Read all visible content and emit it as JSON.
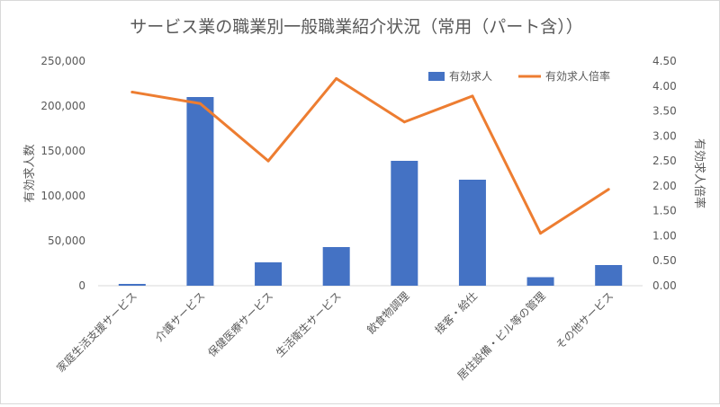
{
  "chart_data": {
    "type": "bar+line",
    "title": "サービス業の職業別一般職業紹介状況（常用（パート含））",
    "categories": [
      "家庭生活支援サービス",
      "介護サービス",
      "保健医療サービス",
      "生活衛生サービス",
      "飲食物調理",
      "接客・給仕",
      "居住設備・ビル等の管理",
      "その他サービス"
    ],
    "series": [
      {
        "name": "有効求人",
        "type": "bar",
        "axis": "left",
        "color": "#4472C4",
        "values": [
          2000,
          210000,
          26000,
          43000,
          139000,
          118000,
          9500,
          23000
        ]
      },
      {
        "name": "有効求人倍率",
        "type": "line",
        "axis": "right",
        "color": "#ED7D31",
        "values": [
          3.88,
          3.65,
          2.5,
          4.15,
          3.28,
          3.8,
          1.05,
          1.93
        ]
      }
    ],
    "ylabel": "有効求人数",
    "y2label": "有効求人倍率",
    "ylim": [
      0,
      250000
    ],
    "y2lim": [
      0,
      4.5
    ],
    "yticks": [
      "0",
      "50,000",
      "100,000",
      "150,000",
      "200,000",
      "250,000"
    ],
    "y2ticks": [
      "0.00",
      "0.50",
      "1.00",
      "1.50",
      "2.00",
      "2.50",
      "3.00",
      "3.50",
      "4.00",
      "4.50"
    ],
    "grid": false,
    "legend_position": "top-right"
  }
}
